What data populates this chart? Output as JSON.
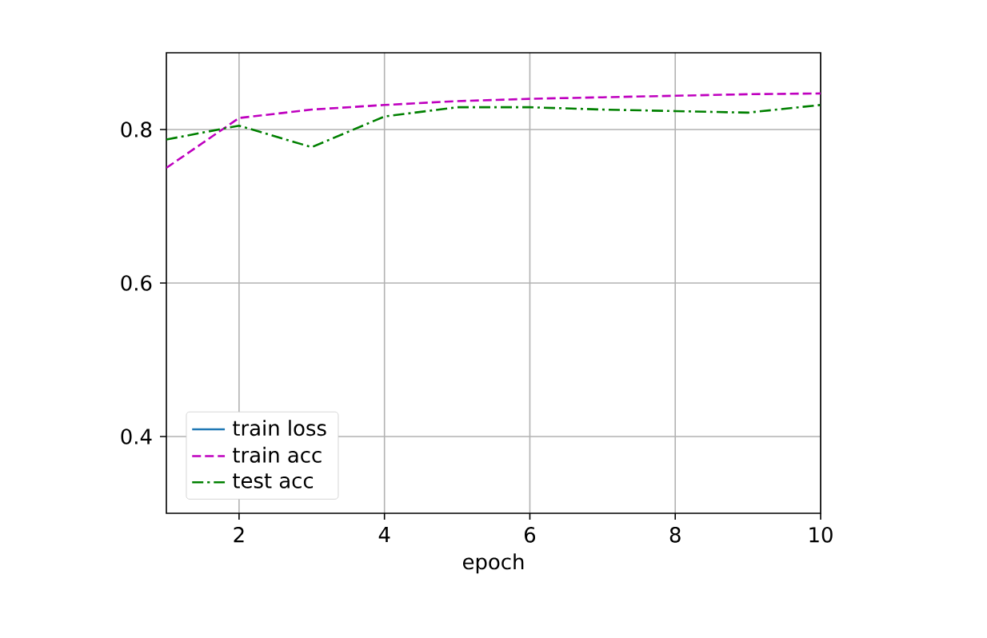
{
  "chart_data": {
    "type": "line",
    "xlabel": "epoch",
    "x": [
      1,
      2,
      3,
      4,
      5,
      6,
      7,
      8,
      9,
      10
    ],
    "series": [
      {
        "name": "train loss",
        "color": "#1f77b4",
        "line_style": "solid",
        "values": [
          null,
          null,
          null,
          null,
          null,
          null,
          null,
          null,
          null,
          null
        ]
      },
      {
        "name": "train acc",
        "color": "#bf00bf",
        "line_style": "dashed",
        "values": [
          0.75,
          0.815,
          0.826,
          0.832,
          0.837,
          0.84,
          0.842,
          0.844,
          0.846,
          0.847
        ]
      },
      {
        "name": "test acc",
        "color": "#008000",
        "line_style": "dashdot",
        "values": [
          0.787,
          0.805,
          0.777,
          0.817,
          0.829,
          0.829,
          0.826,
          0.824,
          0.822,
          0.832
        ]
      }
    ],
    "xlim": [
      1,
      10
    ],
    "ylim": [
      0.3,
      0.9
    ],
    "xticks": [
      2,
      4,
      6,
      8,
      10
    ],
    "yticks": [
      0.4,
      0.6,
      0.8
    ],
    "grid": true,
    "legend": "bottom left"
  }
}
